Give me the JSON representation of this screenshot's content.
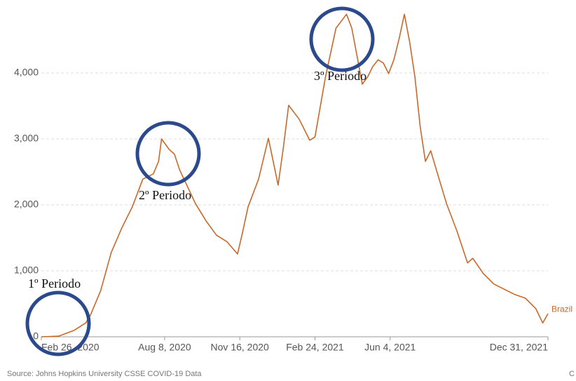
{
  "chart_data": {
    "type": "line",
    "source": "Source: Johns Hopkins University CSSE COVID-19 Data",
    "credit": "C",
    "annotations": [
      "1º Periodo",
      "2º Periodo",
      "3º Periodo"
    ],
    "x": [
      "2020-02-26",
      "2020-03-20",
      "2020-04-10",
      "2020-04-25",
      "2020-05-01",
      "2020-05-15",
      "2020-05-29",
      "2020-06-12",
      "2020-06-26",
      "2020-07-10",
      "2020-07-24",
      "2020-07-31",
      "2020-08-04",
      "2020-08-14",
      "2020-08-21",
      "2020-08-28",
      "2020-09-04",
      "2020-09-18",
      "2020-10-02",
      "2020-10-16",
      "2020-10-30",
      "2020-11-13",
      "2020-11-20",
      "2020-11-27",
      "2020-12-11",
      "2020-12-24",
      "2021-01-06",
      "2021-01-13",
      "2021-01-20",
      "2021-02-03",
      "2021-02-17",
      "2021-02-24",
      "2021-03-10",
      "2021-03-24",
      "2021-04-07",
      "2021-04-14",
      "2021-04-21",
      "2021-04-28",
      "2021-05-05",
      "2021-05-12",
      "2021-05-19",
      "2021-05-26",
      "2021-06-02",
      "2021-06-09",
      "2021-06-16",
      "2021-06-23",
      "2021-06-30",
      "2021-07-07",
      "2021-07-14",
      "2021-07-21",
      "2021-07-28",
      "2021-08-04",
      "2021-08-18",
      "2021-09-01",
      "2021-09-15",
      "2021-09-22",
      "2021-10-06",
      "2021-10-20",
      "2021-11-03",
      "2021-11-17",
      "2021-12-01",
      "2021-12-15",
      "2021-12-24",
      "2021-12-31"
    ],
    "series": [
      {
        "name": "Brazil",
        "color": "#c8692a",
        "values": [
          0,
          10,
          100,
          210,
          320,
          700,
          1280,
          1650,
          1970,
          2390,
          2470,
          2660,
          3000,
          2840,
          2770,
          2530,
          2360,
          2020,
          1760,
          1540,
          1440,
          1255,
          1600,
          1970,
          2390,
          3010,
          2300,
          2870,
          3510,
          3300,
          2980,
          3030,
          3940,
          4680,
          4890,
          4680,
          4260,
          3830,
          3940,
          4100,
          4200,
          4150,
          3990,
          4200,
          4520,
          4890,
          4470,
          3940,
          3190,
          2660,
          2820,
          2550,
          2020,
          1600,
          1120,
          1190,
          960,
          800,
          720,
          640,
          585,
          425,
          210,
          350
        ]
      }
    ],
    "xlim": [
      "2020-02-26",
      "2021-12-31"
    ],
    "xticks": [
      {
        "value": "2020-02-26",
        "label": "Feb 26, 2020"
      },
      {
        "value": "2020-08-08",
        "label": "Aug 8, 2020"
      },
      {
        "value": "2020-11-16",
        "label": "Nov 16, 2020"
      },
      {
        "value": "2021-02-24",
        "label": "Feb 24, 2021"
      },
      {
        "value": "2021-06-04",
        "label": "Jun 4, 2021"
      },
      {
        "value": "2021-12-31",
        "label": "Dec 31, 2021"
      }
    ],
    "ylim": [
      0,
      5000
    ],
    "yticks": [
      0,
      {
        "value": 1000,
        "label": "1,000"
      },
      {
        "value": 2000,
        "label": "2,000"
      },
      {
        "value": 3000,
        "label": "3,000"
      },
      {
        "value": 4000,
        "label": "4,000"
      }
    ],
    "grid": true
  }
}
